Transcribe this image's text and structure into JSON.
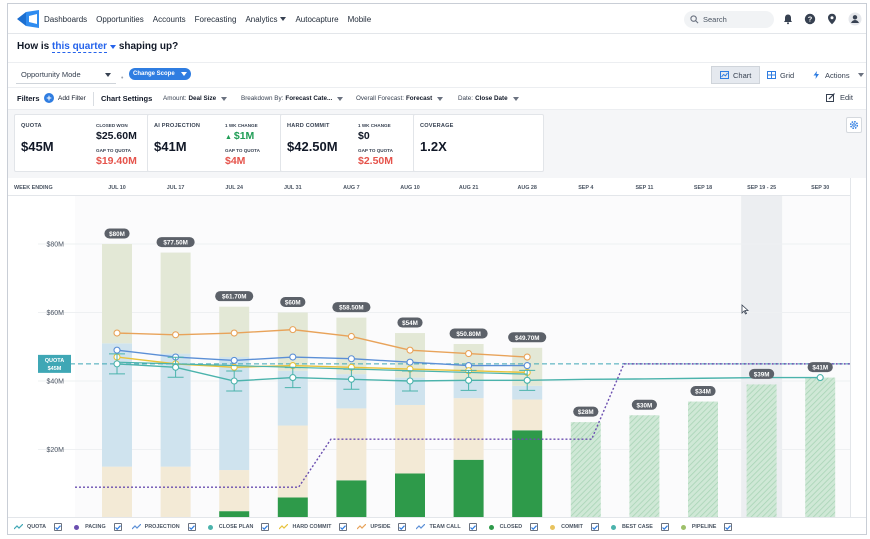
{
  "nav": {
    "items": [
      {
        "label": "Dashboards",
        "dropdown": false
      },
      {
        "label": "Opportunities",
        "dropdown": false
      },
      {
        "label": "Accounts",
        "dropdown": false
      },
      {
        "label": "Forecasting",
        "dropdown": false
      },
      {
        "label": "Analytics",
        "dropdown": true
      },
      {
        "label": "Autocapture",
        "dropdown": false
      },
      {
        "label": "Mobile",
        "dropdown": false
      }
    ],
    "search_placeholder": "Search",
    "icons": [
      "bell-icon",
      "help-icon",
      "location-pin-icon",
      "user-icon"
    ]
  },
  "title": {
    "prefix": "How is",
    "link": "this quarter",
    "suffix": "shaping up?"
  },
  "mode": {
    "select_value": "Opportunity Mode",
    "change_scope": "Change Scope",
    "chart_label": "Chart",
    "grid_label": "Grid",
    "actions_label": "Actions"
  },
  "filters": {
    "label": "Filters",
    "add_filter": "Add Filter",
    "chart_settings": "Chart Settings",
    "dropdowns": [
      {
        "key": "Amount:",
        "value": "Deal Size"
      },
      {
        "key": "Breakdown By:",
        "value": "Forecast Cate..."
      },
      {
        "key": "Overall Forecast:",
        "value": "Forecast"
      },
      {
        "key": "Date:",
        "value": "Close Date"
      }
    ],
    "edit": "Edit"
  },
  "kpis": {
    "quota": {
      "label": "QUOTA",
      "value": "$45M",
      "closed_won_label": "CLOSED WON",
      "closed_won": "$25.60M",
      "gap_label": "GAP TO QUOTA",
      "gap": "$19.40M"
    },
    "ai": {
      "label": "AI PROJECTION",
      "value": "$41M",
      "change_label": "1 WK CHANGE",
      "change": "$1M",
      "gap_label": "GAP TO QUOTA",
      "gap": "$4M"
    },
    "hard": {
      "label": "HARD COMMIT",
      "value": "$42.50M",
      "change_label": "1 WK CHANGE",
      "change": "$0",
      "gap_label": "GAP TO QUOTA",
      "gap": "$2.50M"
    },
    "coverage": {
      "label": "COVERAGE",
      "value": "1.2X"
    }
  },
  "colors": {
    "closed": "#2e9a4a",
    "commit": "#f3ead6",
    "best_case": "#cfe3ee",
    "pipeline": "#e3e8d6",
    "upside": "#e8a35a",
    "team_call": "#5b8fd6",
    "close_plan": "#4bb3ac",
    "hard_commit": "#e8c33b",
    "pacing": "#6b4fb0",
    "quota": "#3fa7b5",
    "future": "#cfe8d6",
    "accent": "#2f7de1"
  },
  "chart_data": {
    "type": "bar",
    "x_header": "WEEK ENDING",
    "categories": [
      "JUL 10",
      "JUL 17",
      "JUL 24",
      "JUL 31",
      "AUG 7",
      "AUG 10",
      "AUG 21",
      "AUG 28",
      "SEP 4",
      "SEP 11",
      "SEP 18",
      "SEP 19 - 25",
      "SEP 30"
    ],
    "highlight_category": "SEP 19 - 25",
    "ylim": [
      0,
      90
    ],
    "yticks": [
      20,
      40,
      60,
      80
    ],
    "ytick_labels": [
      "$20M",
      "$40M",
      "$60M",
      "$80M"
    ],
    "totals": [
      80,
      77.5,
      61.7,
      60,
      58.5,
      54,
      50.8,
      49.7,
      28,
      30,
      34,
      39,
      41
    ],
    "total_labels": [
      "$80M",
      "$77.50M",
      "$61.70M",
      "$60M",
      "$58.50M",
      "$54M",
      "$50.80M",
      "$49.70M",
      "$28M",
      "$30M",
      "$34M",
      "$39M",
      "$41M"
    ],
    "stack": {
      "closed": [
        0,
        0,
        2,
        6,
        11,
        13,
        17,
        25.6,
        0,
        0,
        0,
        0,
        0
      ],
      "commit": [
        15,
        15,
        12,
        21,
        21,
        20,
        18,
        9,
        0,
        0,
        0,
        0,
        0
      ],
      "best_case": [
        36,
        33,
        33,
        16,
        10,
        8,
        5,
        4,
        0,
        0,
        0,
        0,
        0
      ],
      "pipeline": [
        29,
        29.5,
        14.7,
        17,
        16.5,
        13,
        10.8,
        11.1,
        0,
        0,
        0,
        0,
        0
      ]
    },
    "future": [
      0,
      0,
      0,
      0,
      0,
      0,
      0,
      0,
      28,
      30,
      34,
      39,
      41
    ],
    "quota": {
      "label": "QUOTA",
      "value_label": "$45M",
      "value": 45
    },
    "series": [
      {
        "name": "UPSIDE",
        "values": [
          54,
          53.5,
          54,
          55,
          53,
          49,
          48,
          47,
          null,
          null,
          null,
          null,
          null
        ]
      },
      {
        "name": "TEAM CALL",
        "values": [
          49,
          47,
          46,
          47,
          46.5,
          45.5,
          44.5,
          44.5,
          null,
          null,
          null,
          null,
          null
        ]
      },
      {
        "name": "HARD COMMIT",
        "values": [
          47,
          45,
          44,
          44.5,
          44,
          43.5,
          43,
          42.5,
          null,
          null,
          null,
          null,
          null
        ]
      },
      {
        "name": "CLOSE PLAN",
        "values": [
          45.5,
          45,
          44.5,
          44,
          43.5,
          43,
          42.5,
          42,
          null,
          null,
          null,
          null,
          null
        ]
      },
      {
        "name": "PROJECTION",
        "values": [
          45,
          44,
          40,
          41,
          40.5,
          40,
          40.2,
          40.2,
          40.5,
          40.6,
          40.8,
          41,
          41
        ]
      },
      {
        "name": "PACING",
        "values": [
          9,
          9,
          9,
          9,
          23,
          23,
          23,
          23,
          23,
          45,
          45,
          45,
          45
        ]
      }
    ],
    "legend": [
      "QUOTA",
      "PACING",
      "PROJECTION",
      "CLOSE PLAN",
      "HARD COMMIT",
      "UPSIDE",
      "TEAM CALL",
      "CLOSED",
      "COMMIT",
      "BEST CASE",
      "PIPELINE"
    ]
  }
}
